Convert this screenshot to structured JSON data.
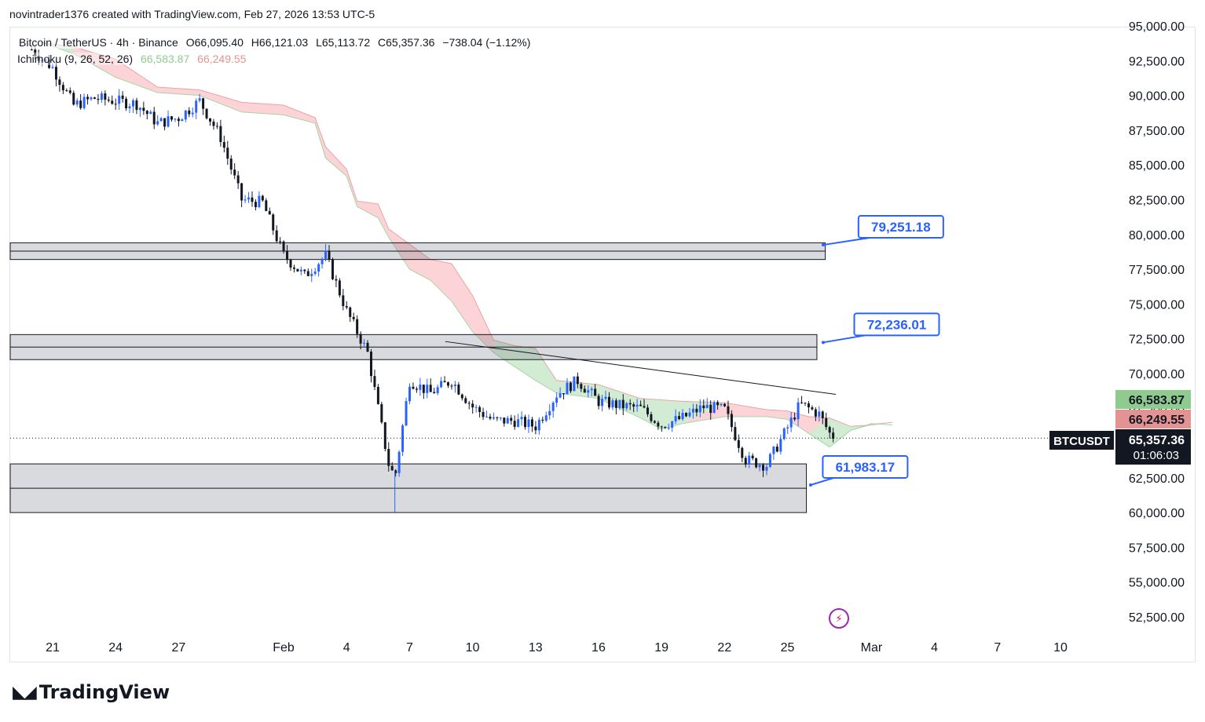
{
  "header": {
    "attribution": "novintrader1376 created with TradingView.com, Feb 27, 2026 13:53 UTC-5"
  },
  "legend": {
    "symbol": "Bitcoin / TetherUS · 4h · Binance",
    "open": "O66,095.40",
    "high": "H66,121.03",
    "low": "L65,113.72",
    "close": "C65,357.36",
    "change": "−738.04 (−1.12%)",
    "indicator": "Ichimoku (9, 26, 52, 26)",
    "ind_val1": "66,583.87",
    "ind_val2": "66,249.55"
  },
  "footer": {
    "brand": "TradingView",
    "lightning_icon": "lightning-icon"
  },
  "chart_data": {
    "type": "candlestick",
    "title": "Bitcoin / TetherUS · 4h · Binance",
    "ylim": [
      51500,
      95500
    ],
    "y_ticks": [
      "95,000.00",
      "92,500.00",
      "90,000.00",
      "87,500.00",
      "85,000.00",
      "82,500.00",
      "80,000.00",
      "77,500.00",
      "75,000.00",
      "72,500.00",
      "70,000.00",
      "67,500.00",
      "65,000.00",
      "62,500.00",
      "60,000.00",
      "57,500.00",
      "55,000.00",
      "52,500.00"
    ],
    "y_tick_values": [
      95000,
      92500,
      90000,
      87500,
      85000,
      82500,
      80000,
      77500,
      75000,
      72500,
      70000,
      67500,
      65000,
      62500,
      60000,
      57500,
      55000,
      52500
    ],
    "x_ticks": [
      "21",
      "24",
      "27",
      "Feb",
      "4",
      "7",
      "10",
      "13",
      "16",
      "19",
      "22",
      "25",
      "Mar",
      "4",
      "7",
      "10"
    ],
    "x_tick_days": [
      -11,
      -8,
      -5,
      0,
      3,
      6,
      9,
      12,
      15,
      18,
      21,
      24,
      28,
      31,
      34,
      37
    ],
    "x_day_range": [
      -12.5,
      39
    ],
    "price_labels": [
      {
        "text": "66,583.87",
        "value": 66583.87,
        "color": "#8fca8e"
      },
      {
        "text": "66,249.55",
        "value": 66249.55,
        "color": "#e49393"
      },
      {
        "text": "65,357.36",
        "value": 65357.36,
        "color": "#131722",
        "sub": "01:06:03",
        "tag": "BTCUSDT"
      }
    ],
    "zones": [
      {
        "from": 78200,
        "to": 79400,
        "mid": 78800,
        "end_day": 25.8
      },
      {
        "from": 71000,
        "to": 72800,
        "mid": 71900,
        "end_day": 25.4
      },
      {
        "from": 60000,
        "to": 63500,
        "mid": 61750,
        "end_day": 24.9
      }
    ],
    "annotations": [
      {
        "text": "79,251.18",
        "value": 79251.18,
        "day": 29.4,
        "ptr_day": 25.7,
        "ptr_value": 79250
      },
      {
        "text": "72,236.01",
        "value": 72236.01,
        "day": 29.2,
        "ptr_day": 25.7,
        "ptr_value": 72236
      },
      {
        "text": "61,983.17",
        "value": 61983.17,
        "day": 27.7,
        "ptr_day": 25.1,
        "ptr_value": 61983
      }
    ],
    "trendline": [
      {
        "day": 7.7,
        "value": 72300
      },
      {
        "day": 26.3,
        "value": 68500
      }
    ],
    "cloud_upper": [
      [
        -11.5,
        93800
      ],
      [
        -10,
        93500
      ],
      [
        -8,
        92600
      ],
      [
        -6,
        90600
      ],
      [
        -4,
        90400
      ],
      [
        -2,
        89500
      ],
      [
        0,
        89300
      ],
      [
        1.5,
        88400
      ],
      [
        2,
        86300
      ],
      [
        3,
        84700
      ],
      [
        3.5,
        82400
      ],
      [
        4.5,
        82200
      ],
      [
        5,
        80400
      ],
      [
        6,
        79300
      ],
      [
        7,
        78200
      ],
      [
        8,
        77900
      ],
      [
        9,
        75600
      ],
      [
        10,
        72400
      ],
      [
        11,
        72000
      ],
      [
        12,
        71800
      ],
      [
        13,
        69500
      ],
      [
        15,
        69200
      ],
      [
        17,
        68200
      ],
      [
        19,
        68000
      ],
      [
        21,
        67900
      ],
      [
        23,
        67400
      ],
      [
        24,
        67300
      ],
      [
        25,
        66900
      ],
      [
        26,
        66800
      ],
      [
        27,
        66200
      ],
      [
        28,
        66300
      ],
      [
        29,
        66500
      ]
    ],
    "cloud_lower": [
      [
        -11.5,
        93800
      ],
      [
        -10,
        93000
      ],
      [
        -8,
        91300
      ],
      [
        -6,
        90200
      ],
      [
        -4,
        90000
      ],
      [
        -2,
        88800
      ],
      [
        0,
        88600
      ],
      [
        1.5,
        88000
      ],
      [
        2,
        85500
      ],
      [
        3,
        84200
      ],
      [
        3.5,
        82000
      ],
      [
        4.5,
        81200
      ],
      [
        5,
        79800
      ],
      [
        6,
        77500
      ],
      [
        7,
        76700
      ],
      [
        8,
        75200
      ],
      [
        9,
        73000
      ],
      [
        10,
        71500
      ],
      [
        11,
        70500
      ],
      [
        12,
        69500
      ],
      [
        13,
        68600
      ],
      [
        15,
        68200
      ],
      [
        17,
        66800
      ],
      [
        18,
        66000
      ],
      [
        19,
        66400
      ],
      [
        21,
        66900
      ],
      [
        23,
        66900
      ],
      [
        24,
        66700
      ],
      [
        25,
        65700
      ],
      [
        26,
        64700
      ],
      [
        27,
        65900
      ],
      [
        28,
        66400
      ],
      [
        29,
        66300
      ]
    ],
    "candles_path": [
      [
        -12,
        93300
      ],
      [
        -11,
        92000
      ],
      [
        -10,
        89300
      ],
      [
        -9,
        89800
      ],
      [
        -8,
        89600
      ],
      [
        -7,
        89400
      ],
      [
        -6,
        88000
      ],
      [
        -5,
        88400
      ],
      [
        -4,
        89600
      ],
      [
        -3,
        87000
      ],
      [
        -2,
        82500
      ],
      [
        -1,
        82300
      ],
      [
        0,
        78500
      ],
      [
        1,
        77000
      ],
      [
        2,
        78500
      ],
      [
        3,
        74500
      ],
      [
        4,
        71500
      ],
      [
        5,
        63500
      ],
      [
        5.3,
        62500
      ],
      [
        6,
        69500
      ],
      [
        7,
        68600
      ],
      [
        8,
        69500
      ],
      [
        9,
        67600
      ],
      [
        10,
        66600
      ],
      [
        11,
        66600
      ],
      [
        12,
        66200
      ],
      [
        13,
        68500
      ],
      [
        14,
        69500
      ],
      [
        15,
        68000
      ],
      [
        16,
        67700
      ],
      [
        17,
        67500
      ],
      [
        18,
        66300
      ],
      [
        19,
        66800
      ],
      [
        20,
        67600
      ],
      [
        21,
        67400
      ],
      [
        22,
        63800
      ],
      [
        23,
        63400
      ],
      [
        24,
        66100
      ],
      [
        24.6,
        67800
      ],
      [
        25,
        67500
      ],
      [
        25.5,
        67100
      ],
      [
        26,
        65700
      ],
      [
        26.3,
        65357
      ]
    ]
  }
}
